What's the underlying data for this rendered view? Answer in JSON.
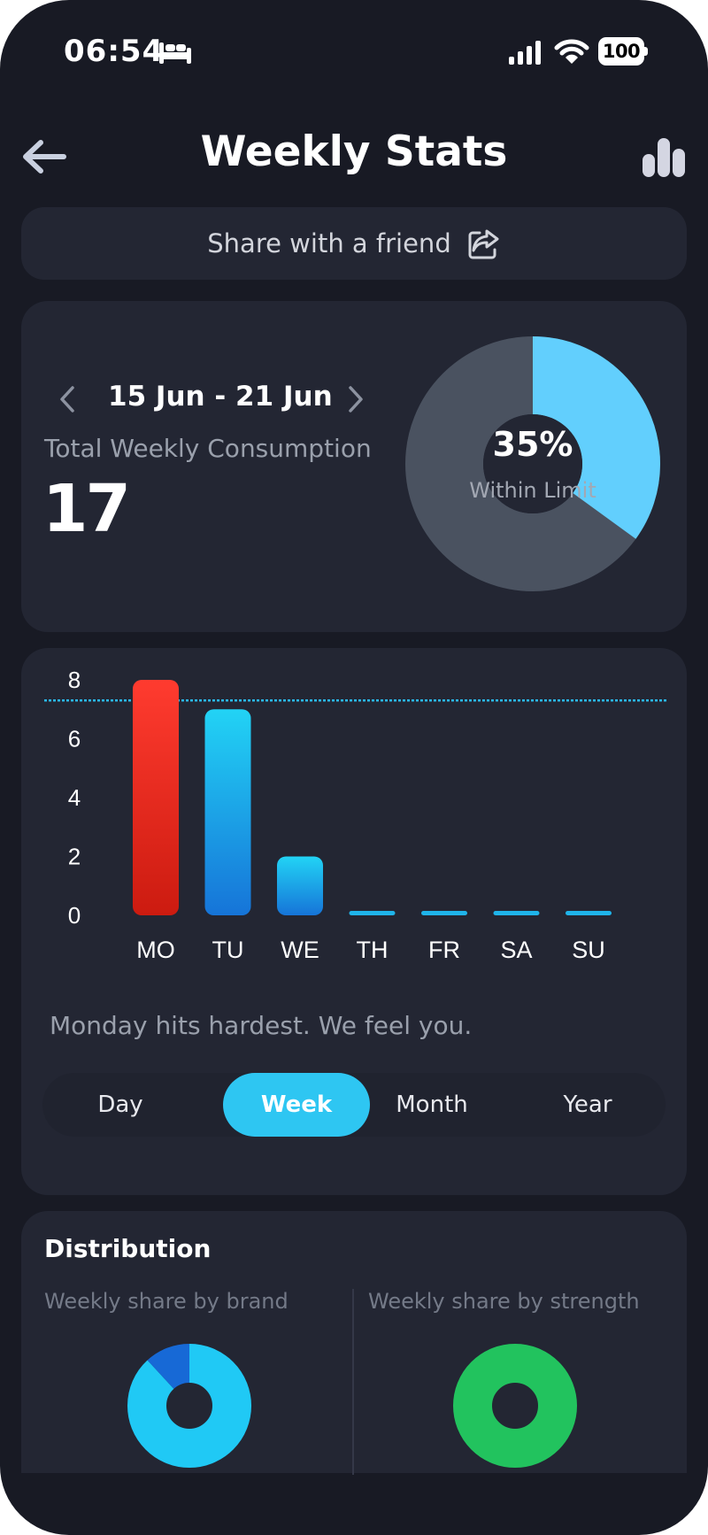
{
  "status_bar": {
    "time": "06:54",
    "battery": "100"
  },
  "header": {
    "title": "Weekly Stats"
  },
  "share": {
    "label": "Share with a friend"
  },
  "summary": {
    "date_range": "15 Jun - 21 Jun",
    "total_label": "Total Weekly Consumption",
    "total_value": "17",
    "percent_label": "35%",
    "percent_value": 35,
    "percent_caption": "Within Limit"
  },
  "chart_data": {
    "type": "bar",
    "categories": [
      "MO",
      "TU",
      "WE",
      "TH",
      "FR",
      "SA",
      "SU"
    ],
    "values": [
      8,
      7,
      2,
      0,
      0,
      0,
      0
    ],
    "yticks": [
      0,
      2,
      4,
      6,
      8
    ],
    "ylim": [
      0,
      8
    ],
    "limit_line": 7.3,
    "colors": {
      "high": "#ff3b2f",
      "normal": "#22c5f0",
      "limit": "#2bb8e8"
    }
  },
  "chart_caption": "Monday hits hardest. We feel you.",
  "range_tabs": {
    "items": [
      "Day",
      "Week",
      "Month",
      "Year"
    ],
    "selected": "Week"
  },
  "distribution": {
    "title": "Distribution",
    "brand_label": "Weekly share by brand",
    "strength_label": "Weekly share by strength",
    "brand_share": [
      {
        "value": 88,
        "color": "#20c9f5"
      },
      {
        "value": 12,
        "color": "#1769d6"
      }
    ],
    "strength_share": [
      {
        "value": 100,
        "color": "#22c35e"
      }
    ]
  },
  "colors": {
    "background": "#181a24",
    "card": "#232633",
    "accent": "#2ec6f2",
    "donut_bg": "#4a5260"
  }
}
